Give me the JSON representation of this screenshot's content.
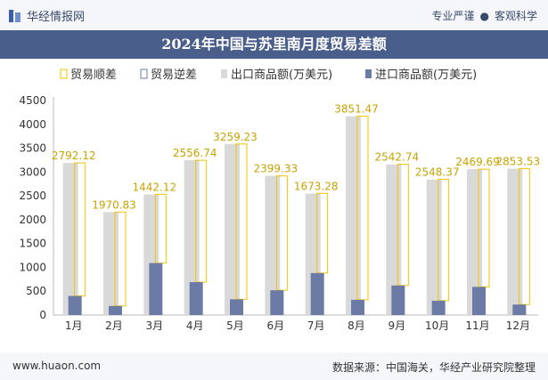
{
  "header": {
    "brand": "华经情报网",
    "tag1": "专业严谨",
    "tag2": "客观科学"
  },
  "colors": {
    "export": "#d9d9d9",
    "import": "#6b7ba6",
    "surplus_outline": "#f2c200",
    "title_bg": "#4a5e8c"
  },
  "footer": {
    "url": "www.huaon.com",
    "source": "数据来源：中国海关，华经产业研究院整理"
  },
  "chart_data": {
    "type": "bar",
    "title": "2024年中国与苏里南月度贸易差额",
    "categories": [
      "1月",
      "2月",
      "3月",
      "4月",
      "5月",
      "6月",
      "7月",
      "8月",
      "9月",
      "10月",
      "11月",
      "12月"
    ],
    "series": [
      {
        "name": "贸易顺差",
        "values": [
          2792.12,
          1970.83,
          1442.12,
          2556.74,
          3259.23,
          2399.33,
          1673.28,
          3851.47,
          2542.74,
          2548.37,
          2469.69,
          2853.53
        ]
      },
      {
        "name": "贸易逆差",
        "values": [
          0,
          0,
          0,
          0,
          0,
          0,
          0,
          0,
          0,
          0,
          0,
          0
        ]
      },
      {
        "name": "出口商品额(万美元)",
        "values": [
          3190,
          2160,
          2530,
          3250,
          3590,
          2920,
          2550,
          4170,
          3160,
          2840,
          3060,
          3070
        ]
      },
      {
        "name": "进口商品额(万美元)",
        "values": [
          400,
          190,
          1090,
          690,
          330,
          520,
          880,
          320,
          620,
          300,
          590,
          220
        ]
      }
    ],
    "labels": [
      "2792.12",
      "1970.83",
      "1442.12",
      "2556.74",
      "3259.23",
      "2399.33",
      "1673.28",
      "3851.47",
      "2542.74",
      "2548.37",
      "2469.69",
      "2853.53"
    ],
    "yticks": [
      "0",
      "500",
      "1000",
      "1500",
      "2000",
      "2500",
      "3000",
      "3500",
      "4000",
      "4500"
    ],
    "ylim": [
      0,
      4500
    ],
    "legend_position": "top-left",
    "grid": false
  }
}
